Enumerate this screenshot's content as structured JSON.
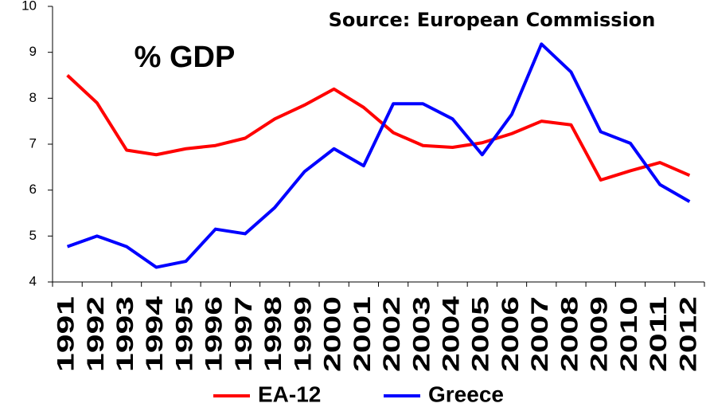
{
  "chart_data": {
    "type": "line",
    "title": "% GDP",
    "source": "Source:  European Commission",
    "categories": [
      "1991",
      "1992",
      "1993",
      "1994",
      "1995",
      "1996",
      "1997",
      "1998",
      "1999",
      "2000",
      "2001",
      "2002",
      "2003",
      "2004",
      "2005",
      "2006",
      "2007",
      "2008",
      "2009",
      "2010",
      "2011",
      "2012"
    ],
    "series": [
      {
        "name": "EA-12",
        "color": "#ff0000",
        "values": [
          8.5,
          7.9,
          6.87,
          6.77,
          6.9,
          6.97,
          7.13,
          7.55,
          7.85,
          8.2,
          7.8,
          7.25,
          6.97,
          6.93,
          7.03,
          7.23,
          7.5,
          7.42,
          6.22,
          6.42,
          6.6,
          6.32
        ]
      },
      {
        "name": "Greece",
        "color": "#0000ff",
        "values": [
          4.77,
          5.0,
          4.77,
          4.32,
          4.45,
          5.15,
          5.05,
          5.62,
          6.4,
          6.9,
          6.53,
          7.88,
          7.88,
          7.55,
          6.77,
          7.65,
          9.18,
          8.57,
          7.27,
          7.02,
          6.12,
          5.75
        ]
      }
    ],
    "ylim": [
      4,
      10
    ],
    "yticks": [
      4,
      5,
      6,
      7,
      8,
      9,
      10
    ],
    "grid": false,
    "legend": "bottom"
  }
}
